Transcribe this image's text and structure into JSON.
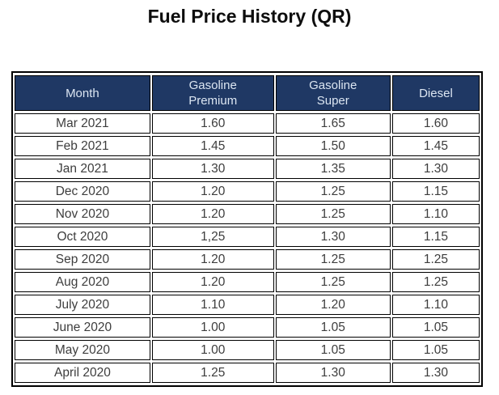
{
  "title": "Fuel Price History (QR)",
  "colors": {
    "header_background": "#1f3864",
    "header_text": "#dce6f2",
    "cell_text": "#3d3d3d",
    "border": "#000000",
    "page_background": "#ffffff",
    "title_text": "#0d0d0d"
  },
  "chart_data": {
    "type": "table",
    "title": "Fuel Price History (QR)",
    "columns": [
      "Month",
      "Gasoline\nPremium",
      "Gasoline\nSuper",
      "Diesel"
    ],
    "rows": [
      [
        "Mar 2021",
        "1.60",
        "1.65",
        "1.60"
      ],
      [
        "Feb 2021",
        "1.45",
        "1.50",
        "1.45"
      ],
      [
        "Jan 2021",
        "1.30",
        "1.35",
        "1.30"
      ],
      [
        "Dec 2020",
        "1.20",
        "1.25",
        "1.15"
      ],
      [
        "Nov 2020",
        "1.20",
        "1.25",
        "1.10"
      ],
      [
        "Oct 2020",
        "1,25",
        "1.30",
        "1.15"
      ],
      [
        "Sep 2020",
        "1.20",
        "1.25",
        "1.25"
      ],
      [
        "Aug 2020",
        "1.20",
        "1.25",
        "1.25"
      ],
      [
        "July 2020",
        "1.10",
        "1.20",
        "1.10"
      ],
      [
        "June 2020",
        "1.00",
        "1.05",
        "1.05"
      ],
      [
        "May 2020",
        "1.00",
        "1.05",
        "1.05"
      ],
      [
        "April 2020",
        "1.25",
        "1.30",
        "1.30"
      ]
    ]
  }
}
